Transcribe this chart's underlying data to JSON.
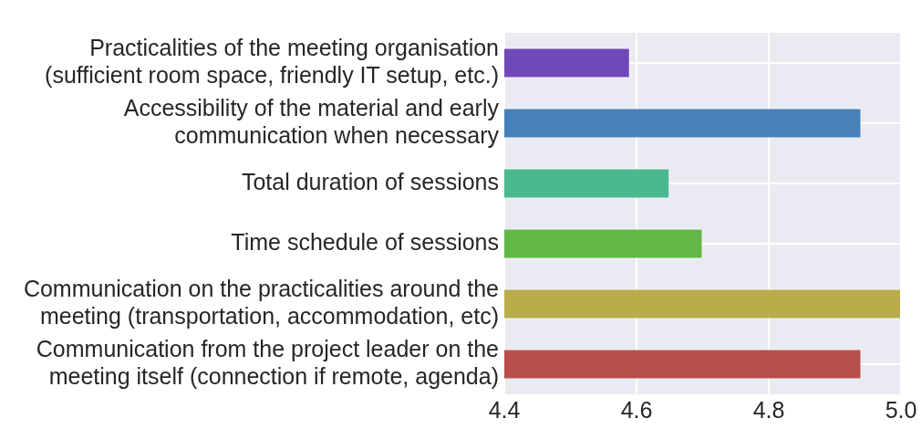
{
  "chart_data": {
    "type": "bar",
    "orientation": "horizontal",
    "categories": [
      "Practicalities of the meeting organisation (sufficient room space, friendly IT setup, etc.)",
      "Accessibility of the material and early communication when necessary",
      "Total duration of sessions",
      "Time schedule of sessions",
      "Communication on the practicalities around the meeting (transportation, accommodation, etc)",
      "Communication from the project leader on the meeting itself (connection if remote, agenda)"
    ],
    "values": [
      4.59,
      4.94,
      4.65,
      4.7,
      5.0,
      4.94
    ],
    "colors": [
      "#7049b8",
      "#4682b9",
      "#4ab98f",
      "#62b846",
      "#b9ad4b",
      "#b9504b"
    ],
    "xlim": [
      4.4,
      5.0
    ],
    "xticks": [
      4.4,
      4.6,
      4.8,
      {
        "value": 5,
        "label": "5.0"
      }
    ],
    "grid": true,
    "legend": false
  }
}
